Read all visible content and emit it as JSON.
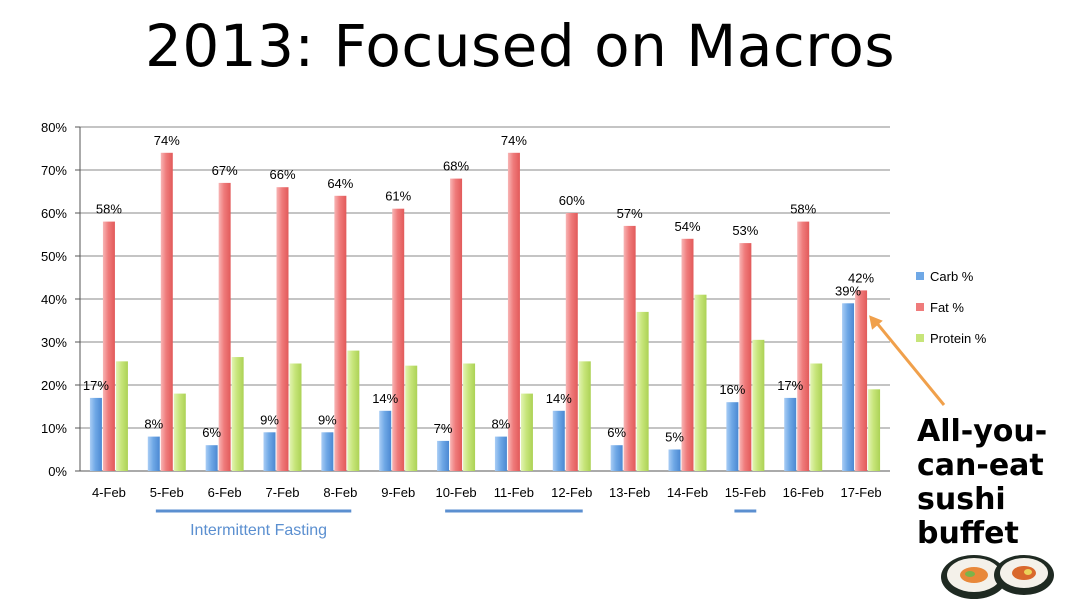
{
  "slide": {
    "title": "2013: Focused on Macros",
    "callout_lines": [
      "All-you-",
      "can-eat",
      "sushi",
      "buffet"
    ]
  },
  "chart_data": {
    "type": "bar",
    "categories": [
      "4-Feb",
      "5-Feb",
      "6-Feb",
      "7-Feb",
      "8-Feb",
      "9-Feb",
      "10-Feb",
      "11-Feb",
      "12-Feb",
      "13-Feb",
      "14-Feb",
      "15-Feb",
      "16-Feb",
      "17-Feb"
    ],
    "series": [
      {
        "name": "Carb %",
        "color": "#6fa8e6",
        "values": [
          17,
          8,
          6,
          9,
          9,
          14,
          7,
          8,
          14,
          6,
          5,
          16,
          17,
          39
        ]
      },
      {
        "name": "Fat %",
        "color": "#ef7b7b",
        "values": [
          58,
          74,
          67,
          66,
          64,
          61,
          68,
          74,
          60,
          57,
          54,
          53,
          58,
          42
        ]
      },
      {
        "name": "Protein %",
        "color": "#c7e57a",
        "values": [
          25.5,
          18,
          26.5,
          25,
          28,
          24.5,
          25,
          18,
          25.5,
          37,
          41,
          30.5,
          25,
          19
        ]
      }
    ],
    "data_labels": {
      "Carb %": [
        "17%",
        "8%",
        "6%",
        "9%",
        "9%",
        "14%",
        "7%",
        "8%",
        "14%",
        "6%",
        "5%",
        "16%",
        "17%",
        "39%"
      ],
      "Fat %": [
        "58%",
        "74%",
        "67%",
        "66%",
        "64%",
        "61%",
        "68%",
        "74%",
        "60%",
        "57%",
        "54%",
        "53%",
        "58%",
        "42%"
      ]
    },
    "ylim": [
      0,
      80
    ],
    "yticks": [
      "0%",
      "10%",
      "20%",
      "30%",
      "40%",
      "50%",
      "60%",
      "70%",
      "80%"
    ],
    "xlabel": "",
    "ylabel": "",
    "grid": true,
    "legend": "right",
    "annotations": [
      {
        "text": "Intermittent Fasting",
        "categories": [
          "5-Feb",
          "6-Feb",
          "7-Feb",
          "8-Feb"
        ]
      },
      {
        "text": "",
        "categories": [
          "10-Feb",
          "11-Feb",
          "12-Feb"
        ]
      },
      {
        "text": "",
        "categories": [
          "15-Feb"
        ]
      }
    ],
    "arrow": {
      "target_category": "17-Feb",
      "color": "#f0a04b"
    },
    "colors": {
      "grid": "#888888",
      "annotation": "#5b8fd0",
      "axis_text": "#000000"
    }
  }
}
